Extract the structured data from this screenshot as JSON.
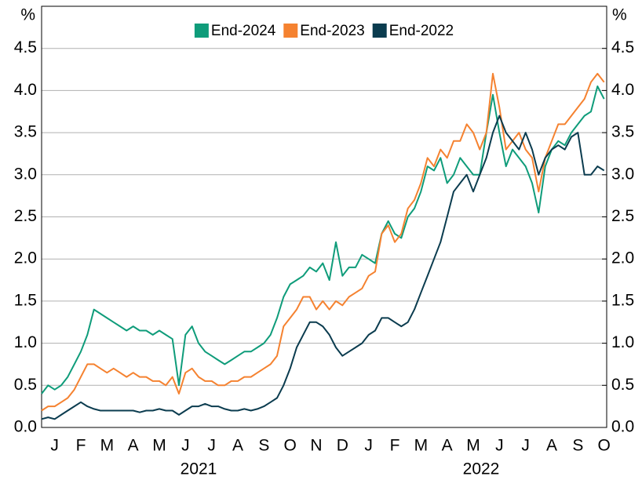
{
  "chart_data": {
    "type": "line",
    "y_unit": "%",
    "y2_unit": "%",
    "xlim": [
      0,
      21.6
    ],
    "xticks": [
      {
        "value": 0.5,
        "label": "J"
      },
      {
        "value": 1.5,
        "label": "F"
      },
      {
        "value": 2.5,
        "label": "M"
      },
      {
        "value": 3.5,
        "label": "A"
      },
      {
        "value": 4.5,
        "label": "M"
      },
      {
        "value": 5.5,
        "label": "J"
      },
      {
        "value": 6.5,
        "label": "J"
      },
      {
        "value": 7.5,
        "label": "A"
      },
      {
        "value": 8.5,
        "label": "S"
      },
      {
        "value": 9.5,
        "label": "O"
      },
      {
        "value": 10.5,
        "label": "N"
      },
      {
        "value": 11.5,
        "label": "D"
      },
      {
        "value": 12.5,
        "label": "J"
      },
      {
        "value": 13.5,
        "label": "F"
      },
      {
        "value": 14.5,
        "label": "M"
      },
      {
        "value": 15.5,
        "label": "A"
      },
      {
        "value": 16.5,
        "label": "M"
      },
      {
        "value": 17.5,
        "label": "J"
      },
      {
        "value": 18.5,
        "label": "J"
      },
      {
        "value": 19.5,
        "label": "A"
      },
      {
        "value": 20.5,
        "label": "S"
      },
      {
        "value": 21.5,
        "label": "O"
      }
    ],
    "x_groups": [
      "2021",
      "2022"
    ],
    "ylim": [
      0,
      5
    ],
    "yticks": [
      {
        "value": 0,
        "label": "0.0"
      },
      0.5,
      {
        "value": 1,
        "label": "1.0"
      },
      1.5,
      {
        "value": 2,
        "label": "2.0"
      },
      2.5,
      {
        "value": 3,
        "label": "3.0"
      },
      3.5,
      {
        "value": 4,
        "label": "4.0"
      },
      4.5
    ],
    "y2lim": [
      0,
      5
    ],
    "y2ticks": [
      {
        "value": 0,
        "label": "0.0"
      },
      0.5,
      {
        "value": 1,
        "label": "1.0"
      },
      1.5,
      {
        "value": 2,
        "label": "2.0"
      },
      2.5,
      {
        "value": 3,
        "label": "3.0"
      },
      3.5,
      {
        "value": 4,
        "label": "4.0"
      },
      4.5
    ],
    "grid": true,
    "legend": "top",
    "x": [
      0,
      0.25,
      0.5,
      0.75,
      1,
      1.25,
      1.5,
      1.75,
      2,
      2.25,
      2.5,
      2.75,
      3,
      3.25,
      3.5,
      3.75,
      4,
      4.25,
      4.5,
      4.75,
      5,
      5.25,
      5.5,
      5.75,
      6,
      6.25,
      6.5,
      6.75,
      7,
      7.25,
      7.5,
      7.75,
      8,
      8.25,
      8.5,
      8.75,
      9,
      9.25,
      9.5,
      9.75,
      10,
      10.25,
      10.5,
      10.75,
      11,
      11.25,
      11.5,
      11.75,
      12,
      12.25,
      12.5,
      12.75,
      13,
      13.25,
      13.5,
      13.75,
      14,
      14.25,
      14.5,
      14.75,
      15,
      15.25,
      15.5,
      15.75,
      16,
      16.25,
      16.5,
      16.75,
      17,
      17.25,
      17.5,
      17.75,
      18,
      18.25,
      18.5,
      18.75,
      19,
      19.25,
      19.5,
      19.75,
      20,
      20.25,
      20.5,
      20.75,
      21,
      21.25,
      21.5
    ],
    "series": [
      {
        "name": "End-2024",
        "color": "#0f9c7a",
        "values": [
          0.4,
          0.5,
          0.45,
          0.5,
          0.6,
          0.75,
          0.9,
          1.1,
          1.4,
          1.35,
          1.3,
          1.25,
          1.2,
          1.15,
          1.2,
          1.15,
          1.15,
          1.1,
          1.15,
          1.1,
          1.05,
          0.5,
          1.1,
          1.2,
          1.0,
          0.9,
          0.85,
          0.8,
          0.75,
          0.8,
          0.85,
          0.9,
          0.9,
          0.95,
          1.0,
          1.1,
          1.3,
          1.55,
          1.7,
          1.75,
          1.8,
          1.9,
          1.85,
          1.95,
          1.75,
          2.2,
          1.8,
          1.9,
          1.9,
          2.05,
          2.0,
          1.95,
          2.3,
          2.45,
          2.3,
          2.25,
          2.5,
          2.6,
          2.8,
          3.1,
          3.05,
          3.2,
          2.9,
          3.0,
          3.2,
          3.1,
          3.0,
          3.0,
          3.5,
          3.95,
          3.5,
          3.1,
          3.3,
          3.2,
          3.1,
          2.9,
          2.55,
          3.1,
          3.3,
          3.4,
          3.35,
          3.5,
          3.6,
          3.7,
          3.75,
          4.05,
          3.9
        ]
      },
      {
        "name": "End-2023",
        "color": "#f58230",
        "values": [
          0.2,
          0.25,
          0.25,
          0.3,
          0.35,
          0.45,
          0.6,
          0.75,
          0.75,
          0.7,
          0.65,
          0.7,
          0.65,
          0.6,
          0.65,
          0.6,
          0.6,
          0.55,
          0.55,
          0.5,
          0.6,
          0.4,
          0.65,
          0.7,
          0.6,
          0.55,
          0.55,
          0.5,
          0.5,
          0.55,
          0.55,
          0.6,
          0.6,
          0.65,
          0.7,
          0.75,
          0.85,
          1.2,
          1.3,
          1.4,
          1.55,
          1.55,
          1.4,
          1.5,
          1.4,
          1.5,
          1.45,
          1.55,
          1.6,
          1.65,
          1.8,
          1.85,
          2.3,
          2.4,
          2.2,
          2.3,
          2.6,
          2.7,
          2.9,
          3.2,
          3.1,
          3.3,
          3.2,
          3.4,
          3.4,
          3.6,
          3.5,
          3.3,
          3.5,
          4.2,
          3.8,
          3.3,
          3.4,
          3.5,
          3.3,
          3.2,
          2.8,
          3.2,
          3.4,
          3.6,
          3.6,
          3.7,
          3.8,
          3.9,
          4.1,
          4.2,
          4.1
        ]
      },
      {
        "name": "End-2022",
        "color": "#0b3c4f",
        "values": [
          0.1,
          0.12,
          0.1,
          0.15,
          0.2,
          0.25,
          0.3,
          0.25,
          0.22,
          0.2,
          0.2,
          0.2,
          0.2,
          0.2,
          0.2,
          0.18,
          0.2,
          0.2,
          0.22,
          0.2,
          0.2,
          0.15,
          0.2,
          0.25,
          0.25,
          0.28,
          0.25,
          0.25,
          0.22,
          0.2,
          0.2,
          0.22,
          0.2,
          0.22,
          0.25,
          0.3,
          0.35,
          0.5,
          0.7,
          0.95,
          1.1,
          1.25,
          1.25,
          1.2,
          1.1,
          0.95,
          0.85,
          0.9,
          0.95,
          1.0,
          1.1,
          1.15,
          1.3,
          1.3,
          1.25,
          1.2,
          1.25,
          1.4,
          1.6,
          1.8,
          2.0,
          2.2,
          2.5,
          2.8,
          2.9,
          3.0,
          2.8,
          3.0,
          3.2,
          3.5,
          3.7,
          3.5,
          3.4,
          3.3,
          3.5,
          3.3,
          3.0,
          3.2,
          3.3,
          3.35,
          3.3,
          3.45,
          3.5,
          3.0,
          3.0,
          3.1,
          3.05
        ]
      }
    ]
  }
}
